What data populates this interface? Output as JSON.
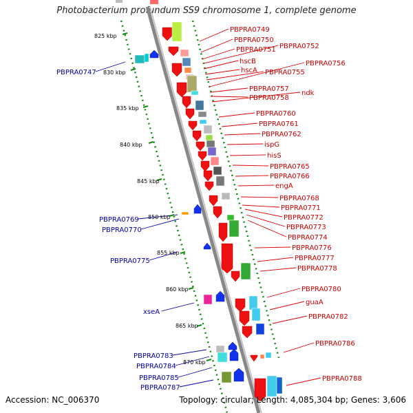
{
  "header": {
    "title": "Photobacterium profundum SS9 chromosome 1, complete genome"
  },
  "footer": {
    "accession": "Accession: NC_006370",
    "topology": "Topology: circular; Length: 4,085,304 bp; Genes: 3,606"
  },
  "colors": {
    "forward_label": "#cc0000",
    "reverse_label": "#0000aa",
    "scale_tick": "#118811",
    "backbone": "#888888"
  },
  "scale_ticks": [
    "825 kbp",
    "830 kbp",
    "835 kbp",
    "840 kbp",
    "845 kbp",
    "850 kbp",
    "855 kbp",
    "860 kbp",
    "865 kbp",
    "870 kbp"
  ],
  "forward_genes": [
    "PBPRA0749",
    "PBPRA0750",
    "PBPRA0751",
    "PBPRA0752",
    "hscB",
    "hscA",
    "PBPRA0755",
    "PBPRA0756",
    "PBPRA0757",
    "PBPRA0758",
    "ndk",
    "PBPRA0760",
    "PBPRA0761",
    "PBPRA0762",
    "ispG",
    "hisS",
    "PBPRA0765",
    "PBPRA0766",
    "engA",
    "PBPRA0768",
    "PBPRA0771",
    "PBPRA0772",
    "PBPRA0773",
    "PBPRA0774",
    "PBPRA0776",
    "PBPRA0777",
    "PBPRA0778",
    "PBPRA0780",
    "guaA",
    "PBPRA0782",
    "PBPRA0786",
    "PBPRA0788"
  ],
  "reverse_genes": [
    "PBPRA0747",
    "PBPRA0769",
    "PBPRA0770",
    "PBPRA0775",
    "xseA",
    "PBPRA0783",
    "PBPRA0784",
    "PBPRA0785",
    "PBPRA0787"
  ]
}
